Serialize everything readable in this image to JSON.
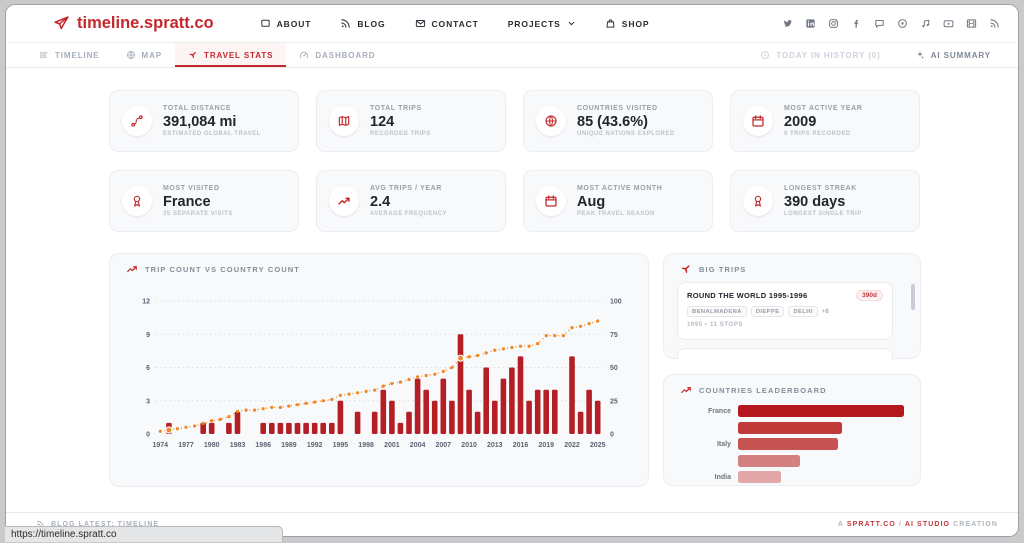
{
  "status_bar": {
    "url": "https://timeline.spratt.co"
  },
  "colors": {
    "accent": "#c2282d",
    "bar": "#b31f24",
    "line": "#ef8722"
  },
  "header": {
    "logo": {
      "text": "timeline.spratt.co",
      "icon": "send"
    },
    "nav": [
      {
        "label": "ABOUT",
        "icon": "chat-square",
        "chevron": false
      },
      {
        "label": "BLOG",
        "icon": "rss",
        "chevron": false
      },
      {
        "label": "CONTACT",
        "icon": "mail",
        "chevron": false
      },
      {
        "label": "PROJECTS",
        "icon": "",
        "chevron": true
      },
      {
        "label": "SHOP",
        "icon": "bag",
        "chevron": false
      }
    ],
    "social_icons": [
      "twitter",
      "linkedin",
      "instagram",
      "facebook",
      "chat-bubble",
      "circle-dot",
      "music",
      "youtube",
      "film",
      "rss"
    ]
  },
  "tabs": {
    "left": [
      {
        "label": "TIMELINE",
        "icon": "timeline",
        "state": "inactive"
      },
      {
        "label": "MAP",
        "icon": "globe",
        "state": "inactive"
      },
      {
        "label": "TRAVEL STATS",
        "icon": "plane",
        "state": "active"
      },
      {
        "label": "DASHBOARD",
        "icon": "gauge",
        "state": "inactive"
      }
    ],
    "right": [
      {
        "label": "TODAY IN HISTORY (0)",
        "icon": "clock",
        "state": "disabled"
      },
      {
        "label": "AI SUMMARY",
        "icon": "sparkles",
        "state": "ai"
      }
    ]
  },
  "stats": [
    {
      "icon": "route",
      "label": "TOTAL DISTANCE",
      "value": "391,084 mi",
      "sub": "ESTIMATED GLOBAL TRAVEL"
    },
    {
      "icon": "map",
      "label": "TOTAL TRIPS",
      "value": "124",
      "sub": "RECORDED TRIPS"
    },
    {
      "icon": "globe",
      "label": "COUNTRIES VISITED",
      "value": "85 (43.6%)",
      "sub": "UNIQUE NATIONS EXPLORED"
    },
    {
      "icon": "calendar",
      "label": "MOST ACTIVE YEAR",
      "value": "2009",
      "sub": "9 TRIPS RECORDED"
    },
    {
      "icon": "medal",
      "label": "MOST VISITED",
      "value": "France",
      "sub": "35 SEPARATE VISITS"
    },
    {
      "icon": "trend-up",
      "label": "AVG TRIPS / YEAR",
      "value": "2.4",
      "sub": "AVERAGE FREQUENCY"
    },
    {
      "icon": "calendar",
      "label": "MOST ACTIVE MONTH",
      "value": "Aug",
      "sub": "PEAK TRAVEL SEASON"
    },
    {
      "icon": "medal",
      "label": "LONGEST STREAK",
      "value": "390 days",
      "sub": "LONGEST SINGLE TRIP"
    }
  ],
  "chart_data": {
    "type": "bar",
    "title": "TRIP COUNT VS COUNTRY COUNT",
    "icon": "trend-up",
    "years": [
      1974,
      1975,
      1976,
      1977,
      1978,
      1979,
      1980,
      1981,
      1982,
      1983,
      1984,
      1985,
      1986,
      1987,
      1988,
      1989,
      1990,
      1991,
      1992,
      1993,
      1994,
      1995,
      1996,
      1997,
      1998,
      1999,
      2000,
      2001,
      2002,
      2003,
      2004,
      2005,
      2006,
      2007,
      2008,
      2009,
      2010,
      2011,
      2012,
      2013,
      2014,
      2015,
      2016,
      2017,
      2018,
      2019,
      2020,
      2021,
      2022,
      2023,
      2024,
      2025
    ],
    "series": [
      {
        "name": "Trip Count",
        "type": "bar",
        "axis": "left",
        "values": [
          0,
          1,
          0,
          0,
          0,
          1,
          1,
          0,
          1,
          2,
          0,
          0,
          1,
          1,
          1,
          1,
          1,
          1,
          1,
          1,
          1,
          3,
          0,
          2,
          0,
          2,
          4,
          3,
          1,
          2,
          5,
          4,
          3,
          5,
          3,
          9,
          4,
          2,
          6,
          3,
          5,
          6,
          7,
          3,
          4,
          4,
          4,
          0,
          7,
          2,
          4,
          3
        ]
      },
      {
        "name": "Country Count",
        "type": "line",
        "axis": "right",
        "values": [
          2,
          3,
          4,
          5,
          6,
          8,
          10,
          11,
          13,
          17,
          18,
          18,
          19,
          20,
          20,
          21,
          22,
          23,
          24,
          25,
          26,
          29,
          30,
          31,
          32,
          33,
          36,
          38,
          39,
          41,
          43,
          44,
          45,
          47,
          50,
          57,
          58,
          59,
          61,
          63,
          64,
          65,
          66,
          66,
          68,
          74,
          74,
          74,
          80,
          81,
          83,
          85
        ]
      }
    ],
    "left_axis": {
      "ticks": [
        0,
        3,
        6,
        9,
        12
      ],
      "max": 12
    },
    "right_axis": {
      "ticks": [
        0,
        25,
        50,
        75,
        100
      ],
      "max": 100
    },
    "x_tick_interval": 3,
    "highlight_years": [
      1975,
      2009
    ],
    "grid": true
  },
  "big_trips": {
    "heading": "BIG TRIPS",
    "icon": "plane",
    "trips": [
      {
        "title": "ROUND THE WORLD 1995-1996",
        "duration": "390d",
        "tags": [
          "BENALMADENA",
          "DIEPPE",
          "DELHI"
        ],
        "more": "+8",
        "meta": "1995 • 11 STOPS"
      }
    ]
  },
  "leaderboard": {
    "heading": "COUNTRIES LEADERBOARD",
    "icon": "trend-up",
    "max": 35,
    "entries": [
      {
        "label": "France",
        "value": 35
      },
      {
        "label": "",
        "value": 22
      },
      {
        "label": "Italy",
        "value": 21
      },
      {
        "label": "",
        "value": 13
      },
      {
        "label": "India",
        "value": 9
      }
    ],
    "bar_colors": [
      "#b5181c",
      "#c03a3a",
      "#c75252",
      "#d58080",
      "#e2a7a9"
    ]
  },
  "footer": {
    "left": {
      "icon": "rss",
      "label": "BLOG LATEST: TIMELINE"
    },
    "right_parts": [
      {
        "text": "A ",
        "accent": false
      },
      {
        "text": "SPRATT.CO",
        "accent": true
      },
      {
        "text": " / ",
        "accent": false
      },
      {
        "text": "AI STUDIO",
        "accent": true
      },
      {
        "text": " CREATION",
        "accent": false
      }
    ]
  }
}
